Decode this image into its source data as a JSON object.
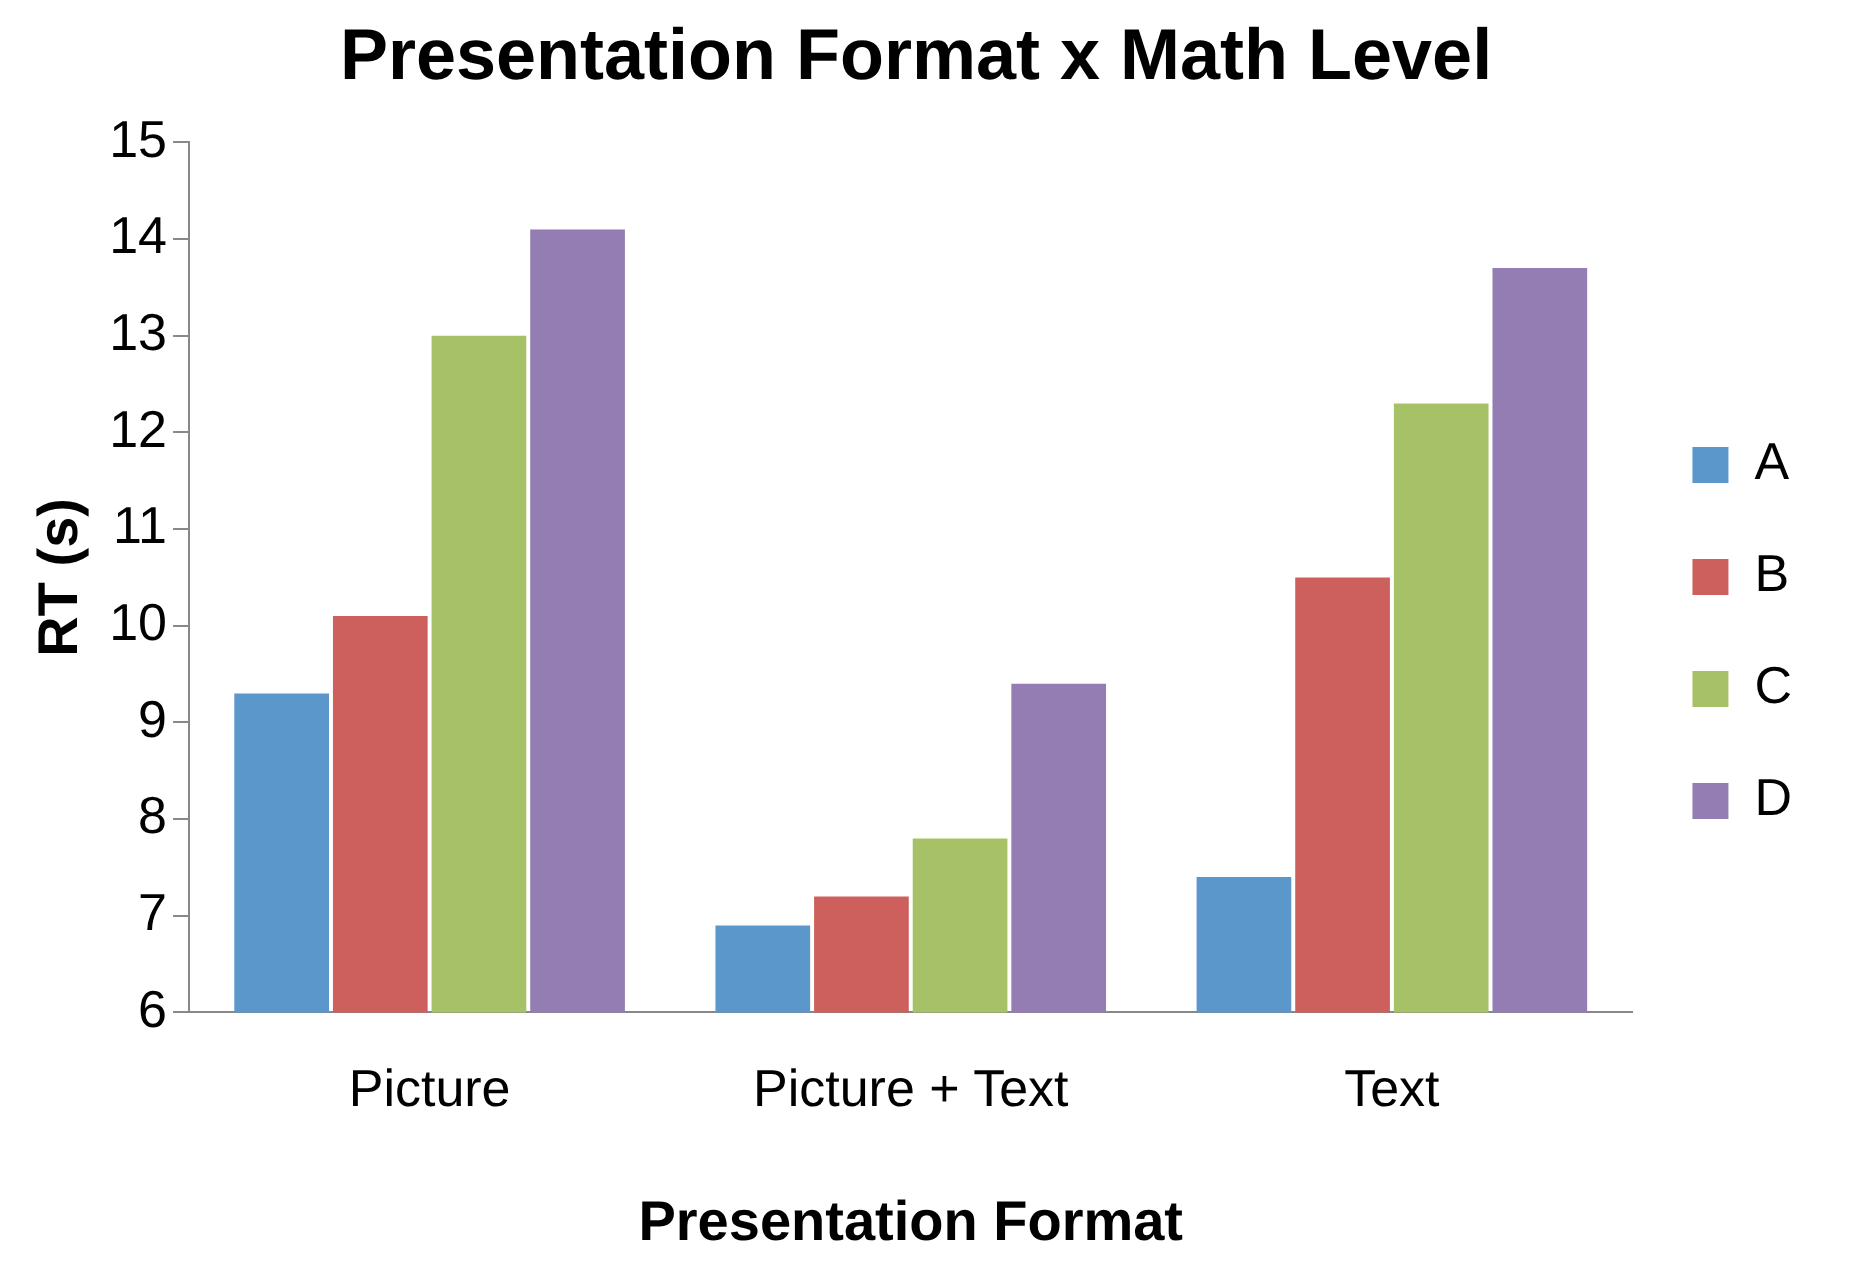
{
  "chart_data": {
    "type": "bar",
    "title": "Presentation Format x Math Level",
    "xlabel": "Presentation Format",
    "ylabel": "RT (s)",
    "categories": [
      "Picture",
      "Picture + Text",
      "Text"
    ],
    "series": [
      {
        "name": "A",
        "color": "#5b97cb",
        "values": [
          9.3,
          6.9,
          7.4
        ]
      },
      {
        "name": "B",
        "color": "#cd605c",
        "values": [
          10.1,
          7.2,
          10.5
        ]
      },
      {
        "name": "C",
        "color": "#a7c266",
        "values": [
          13.0,
          7.8,
          12.3
        ]
      },
      {
        "name": "D",
        "color": "#937db3",
        "values": [
          14.1,
          9.4,
          13.7
        ]
      }
    ],
    "ylim": [
      6,
      15
    ],
    "yticks": [
      6,
      7,
      8,
      9,
      10,
      11,
      12,
      13,
      14,
      15
    ],
    "grid": false,
    "legend": "right"
  }
}
